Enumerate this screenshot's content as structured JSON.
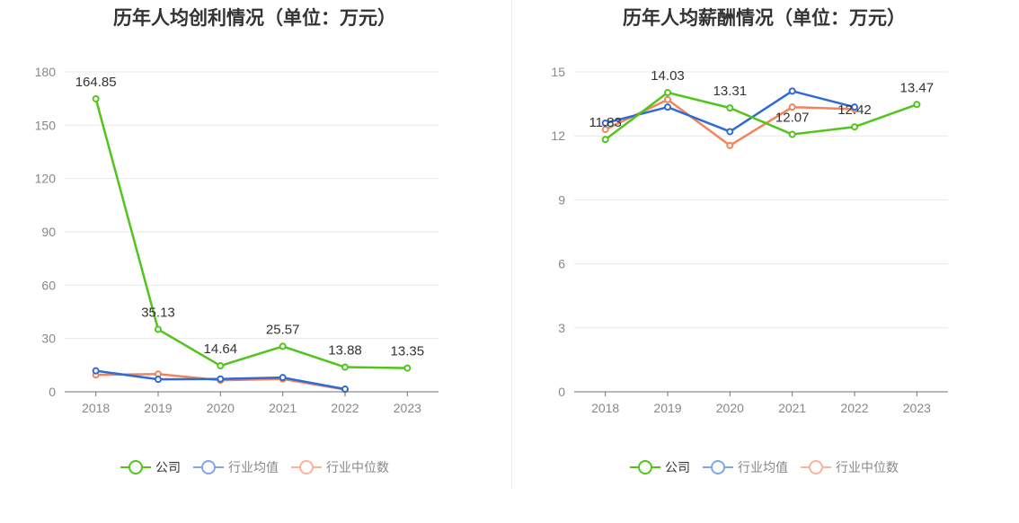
{
  "colors": {
    "company": "#52c41a",
    "industry_avg": "#2f6bd6",
    "industry_median": "#f2845c",
    "axis": "#888888",
    "grid": "#e6e8ee",
    "text": "#333333"
  },
  "legend": {
    "company": "公司",
    "industry_avg": "行业均值",
    "industry_median": "行业中位数"
  },
  "chart_data": [
    {
      "type": "line",
      "title": "历年人均创利情况（单位：万元）",
      "categories": [
        "2018",
        "2019",
        "2020",
        "2021",
        "2022",
        "2023"
      ],
      "ylim": [
        0,
        180
      ],
      "yticks": [
        0,
        30,
        60,
        90,
        120,
        150,
        180
      ],
      "grid": true,
      "legend_position": "bottom",
      "series": [
        {
          "name": "公司",
          "values": [
            164.85,
            35.13,
            14.64,
            25.57,
            13.88,
            13.35
          ],
          "labels": [
            "164.85",
            "35.13",
            "14.64",
            "25.57",
            "13.88",
            "13.35"
          ]
        },
        {
          "name": "行业均值",
          "values": [
            11.8,
            7.0,
            7.2,
            8.0,
            1.5,
            null
          ]
        },
        {
          "name": "行业中位数",
          "values": [
            9.5,
            10.0,
            6.5,
            7.2,
            1.2,
            null
          ]
        }
      ]
    },
    {
      "type": "line",
      "title": "历年人均薪酬情况（单位：万元）",
      "categories": [
        "2018",
        "2019",
        "2020",
        "2021",
        "2022",
        "2023"
      ],
      "ylim": [
        0,
        15
      ],
      "yticks": [
        0,
        3,
        6,
        9,
        12,
        15
      ],
      "grid": true,
      "legend_position": "bottom",
      "series": [
        {
          "name": "公司",
          "values": [
            11.83,
            14.03,
            13.31,
            12.07,
            12.42,
            13.47
          ],
          "labels": [
            "11.83",
            "14.03",
            "13.31",
            "12.07",
            "12.42",
            "13.47"
          ]
        },
        {
          "name": "行业均值",
          "values": [
            12.6,
            13.35,
            12.2,
            14.1,
            13.35,
            null
          ]
        },
        {
          "name": "行业中位数",
          "values": [
            12.3,
            13.7,
            11.55,
            13.35,
            13.25,
            null
          ]
        }
      ]
    }
  ]
}
